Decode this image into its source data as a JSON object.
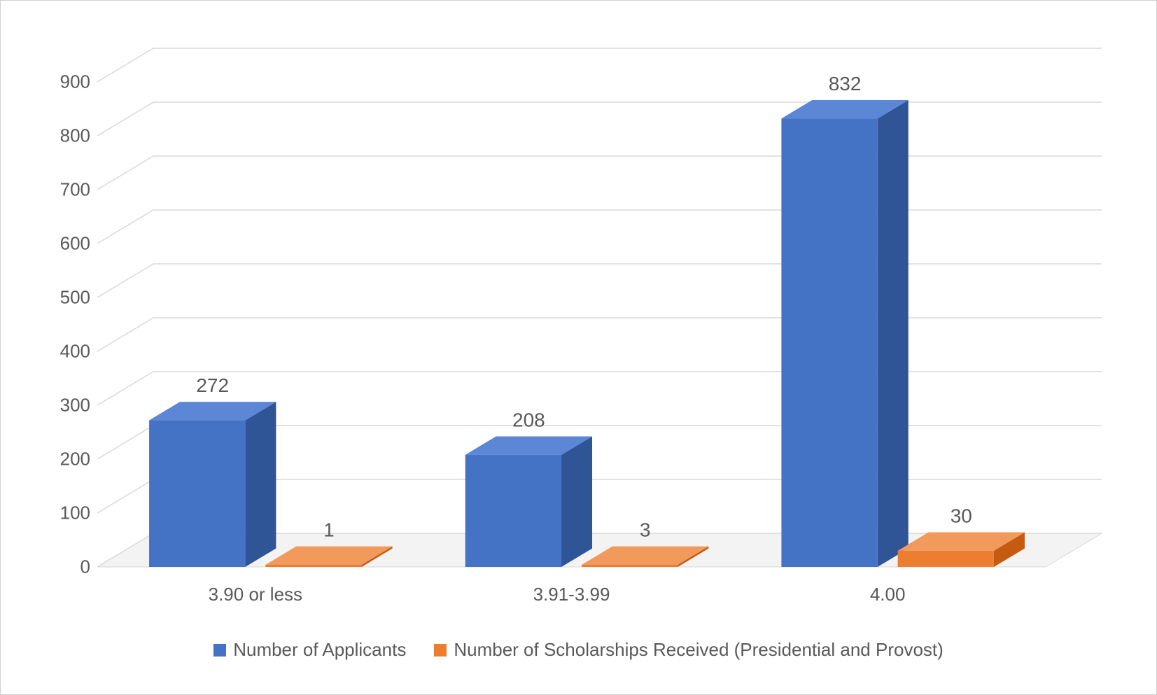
{
  "chart": {
    "type": "bar_3d",
    "categories": [
      "3.90 or less",
      "3.91-3.99",
      "4.00"
    ],
    "series": [
      {
        "name": "Number of Applicants",
        "color_front": "#4472c4",
        "color_top": "#5b87d6",
        "color_side": "#2f5597",
        "values": [
          272,
          208,
          832
        ]
      },
      {
        "name": "Number of Scholarships Received (Presidential and Provost)",
        "color_front": "#ed7d31",
        "color_top": "#f19a5b",
        "color_side": "#c55a11",
        "values": [
          1,
          3,
          30
        ]
      }
    ],
    "y_axis": {
      "min": 0,
      "max": 900,
      "step": 100,
      "ticks": [
        0,
        100,
        200,
        300,
        400,
        500,
        600,
        700,
        800,
        900
      ]
    },
    "colors": {
      "background": "#ffffff",
      "grid": "#d9d9d9",
      "floor": "#e6e6e6",
      "text": "#595959",
      "border": "#d0d0d0"
    },
    "fonts": {
      "axis_label_size": 26,
      "data_label_size": 28,
      "legend_size": 26
    },
    "depth_offset_x": 80,
    "depth_offset_y": 48,
    "bar_width_ratio": 0.38,
    "group_gap_ratio": 0.2,
    "data_labels": {
      "s0": [
        "272",
        "208",
        "832"
      ],
      "s1": [
        "1",
        "3",
        "30"
      ]
    }
  }
}
